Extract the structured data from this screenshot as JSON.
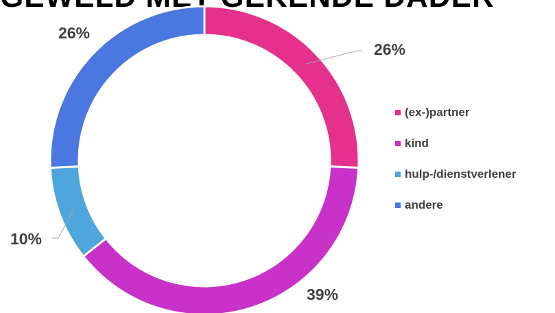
{
  "chart_data": {
    "type": "pie",
    "title": "GEWELD MET GEKENDE DADER",
    "donut": true,
    "categories": [
      "(ex-)partner",
      "kind",
      "hulp-/dienstverlener",
      "andere"
    ],
    "values": [
      26,
      39,
      10,
      26
    ],
    "data_labels": [
      "26%",
      "39%",
      "10%",
      "26%"
    ],
    "colors": [
      "#E5308C",
      "#C832C8",
      "#4FA6DC",
      "#4A78E0"
    ],
    "legend_position": "right"
  }
}
